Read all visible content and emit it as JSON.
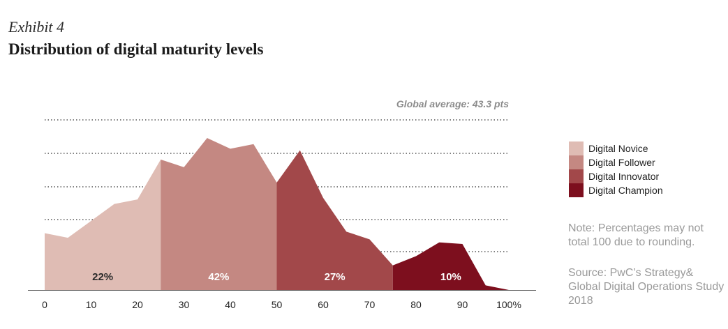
{
  "header": {
    "exhibit": "Exhibit 4",
    "title": "Distribution of digital maturity levels"
  },
  "annotation": "Global average: 43.3 pts",
  "chart_data": {
    "type": "area",
    "title": "Distribution of digital maturity levels",
    "xlabel": "",
    "ylabel": "",
    "xlim": [
      0,
      100
    ],
    "ylim": [
      0,
      100
    ],
    "x": [
      0,
      5,
      10,
      15,
      20,
      25,
      30,
      35,
      40,
      45,
      50,
      55,
      60,
      65,
      70,
      75,
      80,
      85,
      90,
      95,
      100
    ],
    "y": [
      37,
      34,
      45,
      56,
      59,
      85,
      80,
      99,
      92,
      95,
      70,
      91,
      60,
      38,
      33,
      16,
      22,
      31,
      30,
      3,
      0
    ],
    "x_ticks": [
      "0",
      "10",
      "20",
      "30",
      "40",
      "50",
      "60",
      "70",
      "80",
      "90",
      "100%"
    ],
    "x_tick_values": [
      0,
      10,
      20,
      30,
      40,
      50,
      60,
      70,
      80,
      90,
      100
    ],
    "gridlines_y": [
      25,
      46,
      67,
      88,
      109
    ],
    "segments": [
      {
        "name": "Digital Novice",
        "from": 0,
        "to": 25,
        "percent": "22%",
        "color": "#dfbcb4"
      },
      {
        "name": "Digital Follower",
        "from": 25,
        "to": 50,
        "percent": "42%",
        "color": "#c48882"
      },
      {
        "name": "Digital Innovator",
        "from": 50,
        "to": 75,
        "percent": "27%",
        "color": "#a2484a"
      },
      {
        "name": "Digital Champion",
        "from": 75,
        "to": 100,
        "percent": "10%",
        "color": "#7d0f1e"
      }
    ],
    "label_colors": [
      "#2a2a2a",
      "#ffffff",
      "#ffffff",
      "#ffffff"
    ]
  },
  "legend": {
    "items": [
      {
        "label": "Digital Novice",
        "color": "#dfbcb4"
      },
      {
        "label": "Digital Follower",
        "color": "#c48882"
      },
      {
        "label": "Digital Innovator",
        "color": "#a2484a"
      },
      {
        "label": "Digital Champion",
        "color": "#7d0f1e"
      }
    ]
  },
  "note": "Note: Percentages may not total 100 due to rounding.",
  "source": "Source: PwC’s Strategy& Global Digital Operations Study 2018"
}
